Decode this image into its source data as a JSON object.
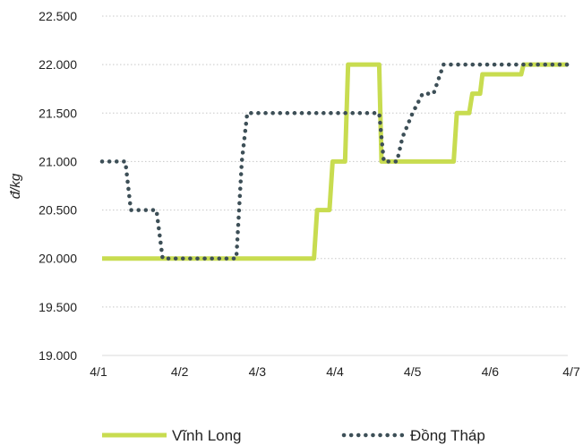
{
  "chart_data": {
    "type": "line",
    "ylabel": "đ/kg",
    "xlabel": "",
    "ylim": [
      19000,
      22500
    ],
    "grid": true,
    "legend_position": "bottom",
    "y_ticks": [
      19000,
      19500,
      20000,
      20500,
      21000,
      21500,
      22000,
      22500
    ],
    "y_tick_labels": [
      "19.000",
      "19.500",
      "20.000",
      "20.500",
      "21.000",
      "21.500",
      "22.000",
      "22.500"
    ],
    "x_ticks": [
      0,
      1,
      2,
      3,
      4,
      5,
      6
    ],
    "x_tick_labels": [
      "4/1",
      "4/2",
      "4/3",
      "4/4",
      "4/5",
      "4/6",
      "4/7"
    ],
    "xlim": [
      0,
      6
    ],
    "series": [
      {
        "name": "Vĩnh Long",
        "color": "#C8DC50",
        "style": "solid",
        "x": [
          0,
          1.8,
          1.83,
          2.73,
          2.77,
          2.93,
          2.97,
          3.13,
          3.17,
          3.57,
          3.6,
          4.53,
          4.57,
          4.73,
          4.77,
          4.87,
          4.9,
          5.13,
          5.17,
          5.4,
          5.43,
          5.53,
          5.57,
          6
        ],
        "values": [
          20000,
          20000,
          20000,
          20000,
          20500,
          20500,
          21000,
          21000,
          22000,
          22000,
          21000,
          21000,
          21500,
          21500,
          21700,
          21700,
          21900,
          21900,
          21900,
          21900,
          22000,
          22000,
          22000,
          22000
        ]
      },
      {
        "name": "Đồng Tháp",
        "color": "#3D4F57",
        "style": "dotted",
        "x": [
          0,
          0.3,
          0.37,
          0.7,
          0.78,
          1.0,
          1.73,
          1.8,
          1.87,
          2.2,
          2.33,
          2.37,
          2.5,
          2.57,
          2.73,
          3.57,
          3.63,
          3.8,
          3.87,
          4.0,
          4.13,
          4.27,
          4.4,
          4.47,
          5.27,
          5.33,
          6
        ],
        "values": [
          21000,
          21000,
          20500,
          20500,
          20000,
          20000,
          20000,
          21000,
          21500,
          21500,
          21500,
          21500,
          21500,
          21500,
          21500,
          21500,
          21000,
          21000,
          21250,
          21500,
          21700,
          21700,
          22000,
          22000,
          22000,
          22000,
          22000
        ]
      }
    ]
  }
}
